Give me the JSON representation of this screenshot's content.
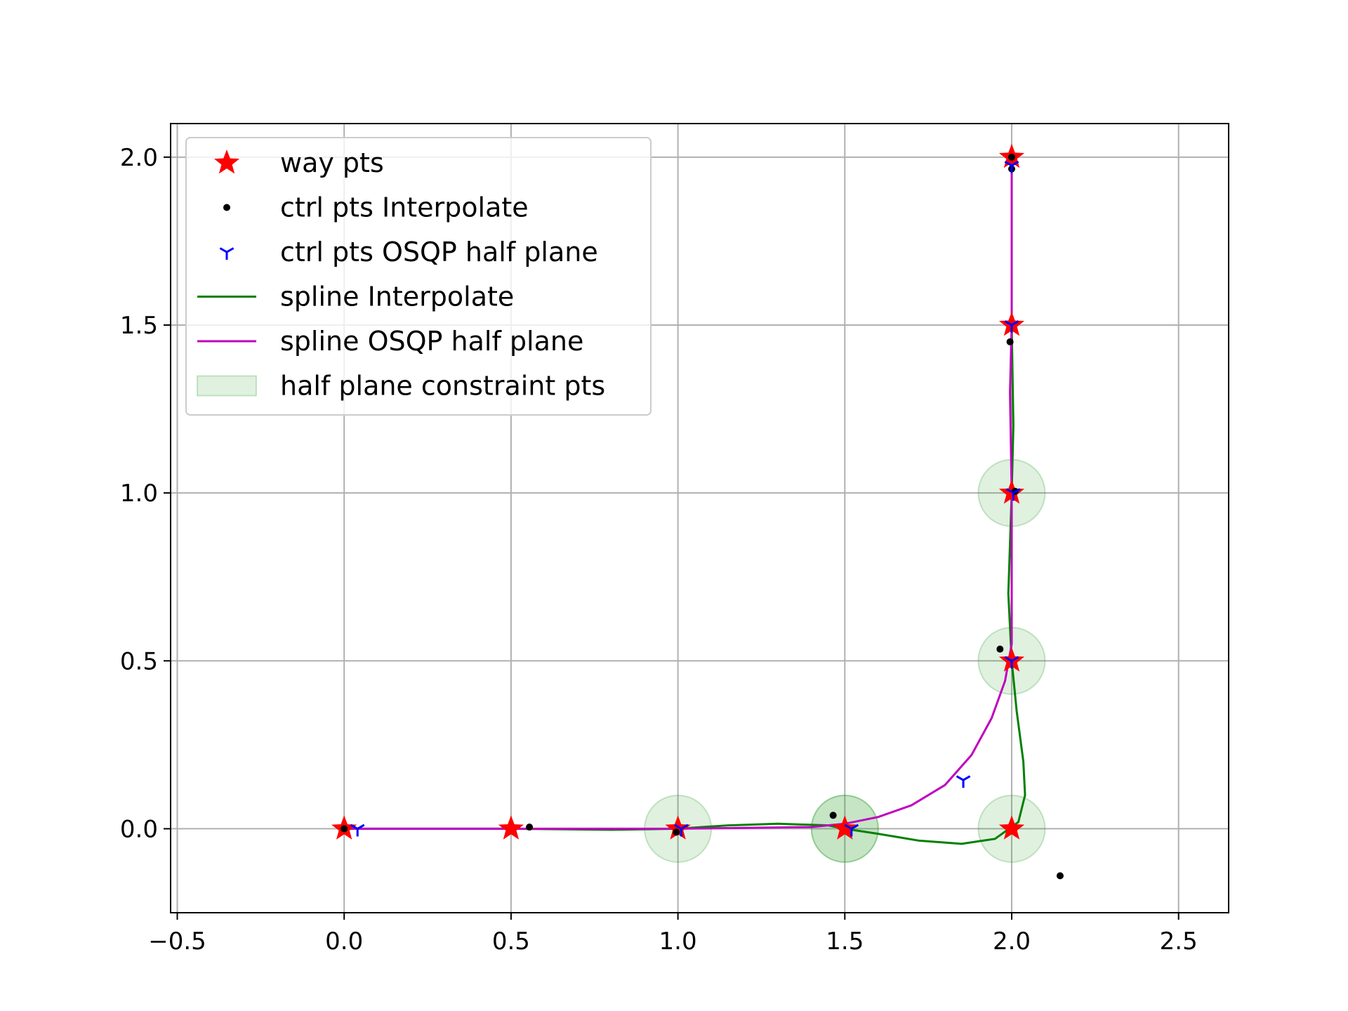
{
  "chart_data": {
    "type": "scatter",
    "title": "",
    "xlabel": "",
    "ylabel": "",
    "xlim": [
      -0.52,
      2.65
    ],
    "ylim": [
      -0.25,
      2.1
    ],
    "xticks": [
      -0.5,
      0.0,
      0.5,
      1.0,
      1.5,
      2.0,
      2.5
    ],
    "yticks": [
      0.0,
      0.5,
      1.0,
      1.5,
      2.0
    ],
    "xtick_labels": [
      "−0.5",
      "0.0",
      "0.5",
      "1.0",
      "1.5",
      "2.0",
      "2.5"
    ],
    "ytick_labels": [
      "0.0",
      "0.5",
      "1.0",
      "1.5",
      "2.0"
    ],
    "grid": true,
    "legend_position": "top-left",
    "colors": {
      "way_pts": "#ff0000",
      "ctrl_interp": "#000000",
      "ctrl_osqp": "#0000ff",
      "spline_interp": "#008000",
      "spline_osqp": "#bf00bf",
      "constraint_fill": "#2ca02c"
    },
    "series": [
      {
        "name": "way pts",
        "kind": "star",
        "points": [
          [
            0,
            0
          ],
          [
            0.5,
            0
          ],
          [
            1.0,
            0
          ],
          [
            1.5,
            0
          ],
          [
            2.0,
            0
          ],
          [
            2.0,
            0.5
          ],
          [
            2.0,
            1.0
          ],
          [
            2.0,
            1.5
          ],
          [
            2.0,
            2.0
          ]
        ]
      },
      {
        "name": "ctrl pts Interpolate",
        "kind": "dot",
        "points": [
          [
            0.0,
            0.0
          ],
          [
            0.555,
            0.005
          ],
          [
            0.995,
            -0.01
          ],
          [
            1.465,
            0.04
          ],
          [
            2.145,
            -0.14
          ],
          [
            1.965,
            0.535
          ],
          [
            2.01,
            1.005
          ],
          [
            1.995,
            1.45
          ],
          [
            2.0,
            1.965
          ],
          [
            2.0,
            2.0
          ]
        ]
      },
      {
        "name": "ctrl pts OSQP half plane",
        "kind": "tri",
        "points": [
          [
            0.04,
            0.0
          ],
          [
            1.01,
            0.0
          ],
          [
            1.52,
            0.0
          ],
          [
            1.855,
            0.145
          ],
          [
            2.0,
            0.5
          ],
          [
            2.005,
            1.0
          ],
          [
            2.0,
            1.5
          ],
          [
            2.0,
            1.975
          ]
        ]
      },
      {
        "name": "spline Interpolate",
        "kind": "line",
        "points": [
          [
            0,
            0
          ],
          [
            0.5,
            0
          ],
          [
            0.8,
            -0.003
          ],
          [
            1.0,
            0
          ],
          [
            1.15,
            0.01
          ],
          [
            1.3,
            0.015
          ],
          [
            1.45,
            0.01
          ],
          [
            1.5,
            0
          ],
          [
            1.6,
            -0.015
          ],
          [
            1.72,
            -0.035
          ],
          [
            1.85,
            -0.045
          ],
          [
            1.95,
            -0.03
          ],
          [
            2.02,
            0.02
          ],
          [
            2.04,
            0.1
          ],
          [
            2.035,
            0.2
          ],
          [
            2.015,
            0.35
          ],
          [
            2.0,
            0.5
          ],
          [
            1.99,
            0.7
          ],
          [
            2.0,
            1.0
          ],
          [
            2.005,
            1.2
          ],
          [
            2.0,
            1.5
          ],
          [
            2.0,
            2.0
          ]
        ]
      },
      {
        "name": "spline OSQP half plane",
        "kind": "line",
        "points": [
          [
            0,
            0
          ],
          [
            0.5,
            0
          ],
          [
            1.0,
            0
          ],
          [
            1.4,
            0.005
          ],
          [
            1.5,
            0.015
          ],
          [
            1.6,
            0.035
          ],
          [
            1.7,
            0.07
          ],
          [
            1.8,
            0.13
          ],
          [
            1.88,
            0.22
          ],
          [
            1.94,
            0.33
          ],
          [
            1.98,
            0.44
          ],
          [
            2.0,
            0.55
          ],
          [
            2.0,
            0.8
          ],
          [
            2.0,
            1.0
          ],
          [
            1.995,
            1.3
          ],
          [
            2.0,
            1.5
          ],
          [
            2.0,
            2.0
          ]
        ]
      },
      {
        "name": "half plane constraint pts",
        "kind": "circle",
        "radius": 0.1,
        "points": [
          [
            1.0,
            0
          ],
          [
            1.5,
            0
          ],
          [
            1.5,
            0
          ],
          [
            2.0,
            0
          ],
          [
            2.0,
            0.5
          ],
          [
            2.0,
            1.0
          ]
        ]
      }
    ]
  }
}
